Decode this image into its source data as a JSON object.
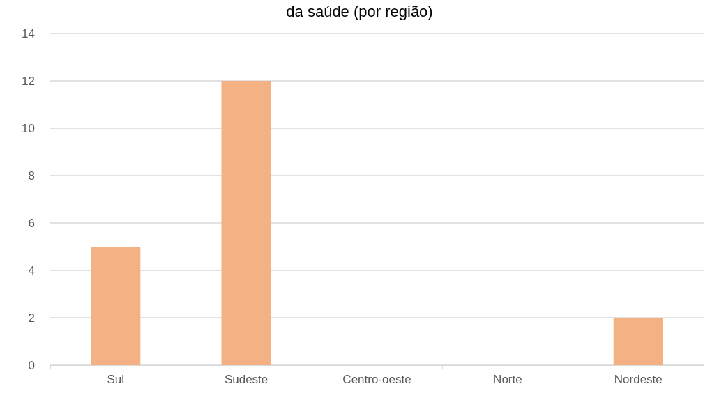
{
  "chart_data": {
    "type": "bar",
    "title": "da saúde (por região)",
    "categories": [
      "Sul",
      "Sudeste",
      "Centro-oeste",
      "Norte",
      "Nordeste"
    ],
    "values": [
      5,
      12,
      0,
      0,
      2
    ],
    "color": "#f4b183",
    "ylim": [
      0,
      14
    ],
    "yticks": [
      0,
      2,
      4,
      6,
      8,
      10,
      12,
      14
    ],
    "grid": "y"
  }
}
